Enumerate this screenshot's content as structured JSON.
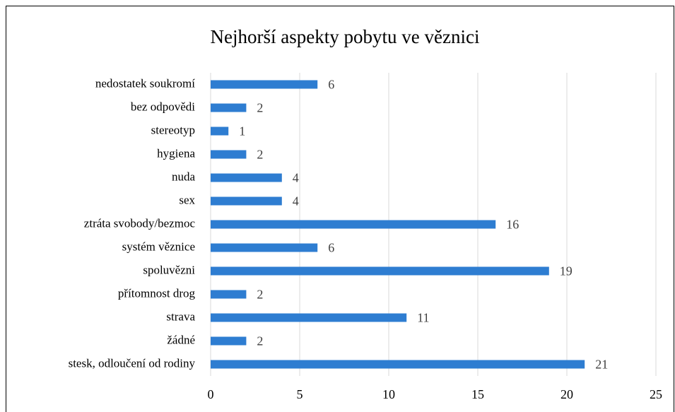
{
  "chart_data": {
    "type": "bar",
    "orientation": "horizontal",
    "title": "Nejhorší aspekty pobytu ve věznici",
    "categories": [
      "nedostatek soukromí",
      "bez odpovědi",
      "stereotyp",
      "hygiena",
      "nuda",
      "sex",
      "ztráta svobody/bezmoc",
      "systém věznice",
      "spoluvězni",
      "přítomnost drog",
      "strava",
      "žádné",
      "stesk, odloučení od rodiny"
    ],
    "values": [
      6,
      2,
      1,
      2,
      4,
      4,
      16,
      6,
      19,
      2,
      11,
      2,
      21
    ],
    "color": "#2e7dd1",
    "xlim": [
      0,
      25
    ],
    "xticks": [
      0,
      5,
      10,
      15,
      20,
      25
    ],
    "grid": true
  }
}
